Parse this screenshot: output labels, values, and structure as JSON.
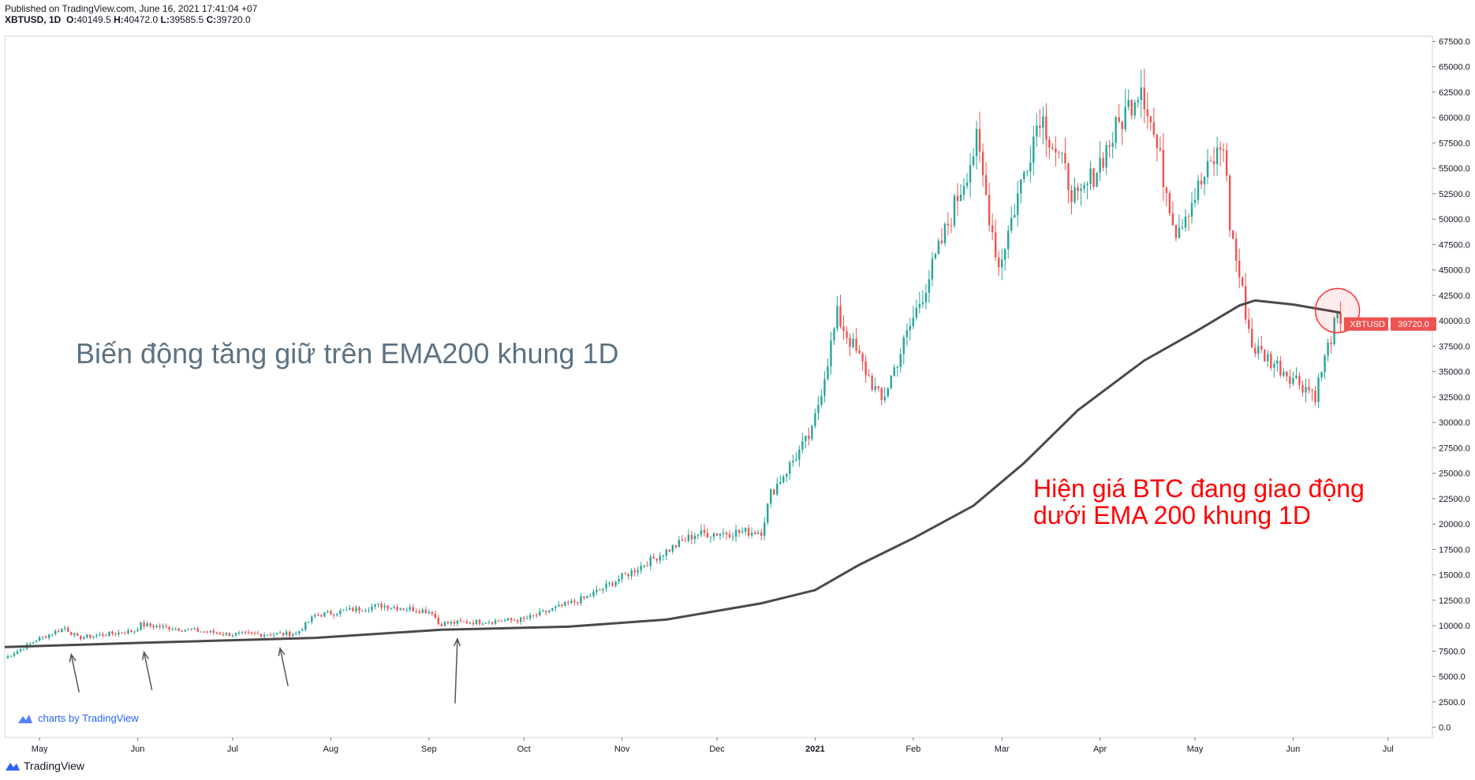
{
  "header": {
    "published": "Published on TradingView.com, June 16, 2021 17:41:04 +07",
    "symbol_tf": "XBTUSD, 1D",
    "o_label": "O:",
    "o": "40149.5",
    "h_label": "H:",
    "h": "40472.0",
    "l_label": "L:",
    "l": "39585.5",
    "c_label": "C:",
    "c": "39720.0"
  },
  "annotations": {
    "main": "Biến động tăng giữ trên EMA200 khung 1D",
    "current_line1": "Hiện giá BTC đang giao động",
    "current_line2": "dưới EMA 200 khung 1D"
  },
  "watermark": "charts by TradingView",
  "footer": "TradingView",
  "colors": {
    "up": "#26a69a",
    "down": "#ef5350",
    "ema": "#4a4a4a",
    "price_label_bg": "#ef5350",
    "annotation_main": "#5d7282",
    "annotation_red": "#ff0000"
  },
  "chart_data": {
    "type": "candlestick",
    "symbol": "XBTUSD",
    "timeframe": "1D",
    "x_range": [
      "2020-04-20",
      "2021-07-15"
    ],
    "ylim": [
      -1000,
      68000
    ],
    "y_ticks": [
      "67500.0",
      "65000.0",
      "62500.0",
      "60000.0",
      "57500.0",
      "55000.0",
      "52500.0",
      "50000.0",
      "47500.0",
      "45000.0",
      "42500.0",
      "40000.0",
      "37500.0",
      "35000.0",
      "32500.0",
      "30000.0",
      "27500.0",
      "25000.0",
      "22500.0",
      "20000.0",
      "17500.0",
      "15000.0",
      "12500.0",
      "10000.0",
      "7500.0",
      "5000.0",
      "2500.0",
      "0.0"
    ],
    "x_ticks": [
      {
        "label": "May",
        "date": "2020-05-01"
      },
      {
        "label": "Jun",
        "date": "2020-06-01"
      },
      {
        "label": "Jul",
        "date": "2020-07-01"
      },
      {
        "label": "Aug",
        "date": "2020-08-01"
      },
      {
        "label": "Sep",
        "date": "2020-09-01"
      },
      {
        "label": "Oct",
        "date": "2020-10-01"
      },
      {
        "label": "Nov",
        "date": "2020-11-01"
      },
      {
        "label": "Dec",
        "date": "2020-12-01"
      },
      {
        "label": "2021",
        "date": "2021-01-01",
        "bold": true
      },
      {
        "label": "Feb",
        "date": "2021-02-01"
      },
      {
        "label": "Mar",
        "date": "2021-03-01"
      },
      {
        "label": "Apr",
        "date": "2021-04-01"
      },
      {
        "label": "May",
        "date": "2021-05-01"
      },
      {
        "label": "Jun",
        "date": "2021-06-01"
      },
      {
        "label": "Jul",
        "date": "2021-07-01"
      }
    ],
    "close_series": [
      [
        "2020-04-20",
        6800
      ],
      [
        "2020-04-30",
        8600
      ],
      [
        "2020-05-09",
        9800
      ],
      [
        "2020-05-13",
        8800
      ],
      [
        "2020-05-31",
        9500
      ],
      [
        "2020-06-02",
        10100
      ],
      [
        "2020-06-30",
        9150
      ],
      [
        "2020-07-21",
        9200
      ],
      [
        "2020-07-27",
        11000
      ],
      [
        "2020-08-17",
        12000
      ],
      [
        "2020-09-02",
        11400
      ],
      [
        "2020-09-04",
        10200
      ],
      [
        "2020-10-01",
        10600
      ],
      [
        "2020-10-21",
        12800
      ],
      [
        "2020-11-05",
        15500
      ],
      [
        "2020-11-24",
        19000
      ],
      [
        "2020-12-15",
        19300
      ],
      [
        "2020-12-18",
        23000
      ],
      [
        "2020-12-31",
        29000
      ],
      [
        "2021-01-08",
        40500
      ],
      [
        "2021-01-22",
        32000
      ],
      [
        "2021-02-08",
        46000
      ],
      [
        "2021-02-21",
        57500
      ],
      [
        "2021-02-28",
        45300
      ],
      [
        "2021-03-13",
        60500
      ],
      [
        "2021-03-25",
        51500
      ],
      [
        "2021-04-14",
        63500
      ],
      [
        "2021-04-25",
        49000
      ],
      [
        "2021-05-10",
        57500
      ],
      [
        "2021-05-12",
        49500
      ],
      [
        "2021-05-19",
        37500
      ],
      [
        "2021-06-08",
        32800
      ],
      [
        "2021-06-13",
        38500
      ],
      [
        "2021-06-15",
        40200
      ],
      [
        "2021-06-16",
        39720
      ]
    ],
    "ema200": [
      [
        "2020-04-20",
        7900
      ],
      [
        "2020-06-01",
        8300
      ],
      [
        "2020-07-27",
        8800
      ],
      [
        "2020-09-05",
        9600
      ],
      [
        "2020-10-15",
        9900
      ],
      [
        "2020-11-15",
        10600
      ],
      [
        "2020-12-15",
        12200
      ],
      [
        "2021-01-01",
        13500
      ],
      [
        "2021-01-15",
        16000
      ],
      [
        "2021-02-01",
        18600
      ],
      [
        "2021-02-20",
        21800
      ],
      [
        "2021-03-08",
        26000
      ],
      [
        "2021-03-25",
        31200
      ],
      [
        "2021-04-15",
        36100
      ],
      [
        "2021-05-01",
        38900
      ],
      [
        "2021-05-15",
        41500
      ],
      [
        "2021-05-20",
        42000
      ],
      [
        "2021-06-01",
        41600
      ],
      [
        "2021-06-16",
        40800
      ]
    ],
    "last_price": "39720.0",
    "last_price_label": "XBTUSD",
    "markers": {
      "support_arrows_dates": [
        "2020-05-11",
        "2020-06-03",
        "2020-07-16",
        "2020-09-10"
      ],
      "highlight_circle": {
        "date": "2021-06-15",
        "value": 41000
      }
    }
  }
}
